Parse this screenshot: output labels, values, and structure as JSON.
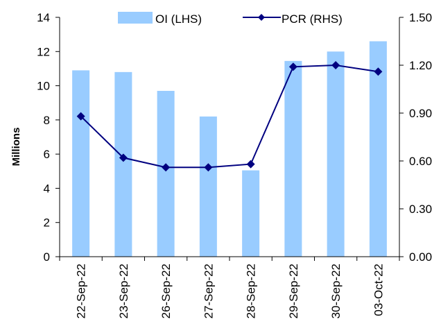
{
  "chart_data": {
    "type": "bar",
    "categories": [
      "22-Sep-22",
      "23-Sep-22",
      "26-Sep-22",
      "27-Sep-22",
      "28-Sep-22",
      "29-Sep-22",
      "30-Sep-22",
      "03-Oct-22"
    ],
    "series": [
      {
        "name": "OI (LHS)",
        "type": "bar",
        "axis": "left",
        "color": "#99ccff",
        "values": [
          10.9,
          10.8,
          9.7,
          8.2,
          5.05,
          11.45,
          12.0,
          12.6
        ]
      },
      {
        "name": "PCR (RHS)",
        "type": "line",
        "axis": "right",
        "color": "#000080",
        "marker": "diamond",
        "values": [
          0.88,
          0.62,
          0.56,
          0.56,
          0.58,
          1.19,
          1.2,
          1.16
        ]
      }
    ],
    "ylabel": "Millions",
    "ylim": [
      0,
      14
    ],
    "y_ticks": [
      "0",
      "2",
      "4",
      "6",
      "8",
      "10",
      "12",
      "14"
    ],
    "y2lim": [
      0,
      1.5
    ],
    "y2_ticks": [
      "0.00",
      "0.30",
      "0.60",
      "0.90",
      "1.20",
      "1.50"
    ],
    "legend_position": "top",
    "grid": false
  }
}
